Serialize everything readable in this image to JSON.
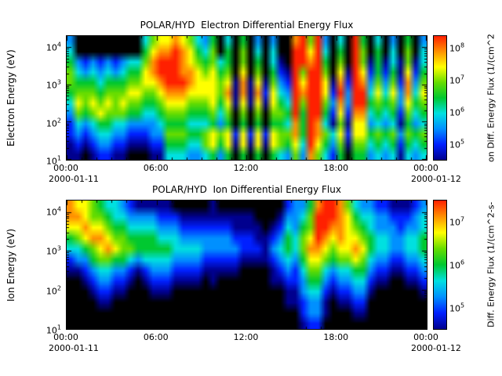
{
  "colormap": [
    "#000000",
    "#00008e",
    "#0020ff",
    "#0090ff",
    "#00e0e0",
    "#00c830",
    "#66dd00",
    "#ffff00",
    "#ff9000",
    "#ff2000"
  ],
  "chart_data": [
    {
      "type": "heatmap",
      "instrument": "POLAR/HYD",
      "title": "POLAR/HYD  Electron Differential Energy Flux",
      "ylabel": "Electron Energy (eV)",
      "y_scale": "log",
      "y_ticks": [
        "10^1",
        "10^2",
        "10^3",
        "10^4"
      ],
      "y_range_exp": [
        1,
        4.3
      ],
      "x_ticks": [
        "00:00",
        "06:00",
        "12:00",
        "18:00",
        "00:00"
      ],
      "x_date_start": "2000-01-11",
      "x_date_end": "2000-01-12",
      "colorbar_label": "on Diff. Energy Flux (1/(cm^2",
      "colorbar_ticks": [
        "10^5",
        "10^6",
        "10^7",
        "10^8"
      ],
      "colorbar_range_exp": [
        4.5,
        8.4
      ],
      "time_bin_hours": 0.5,
      "flux_levels_note": "flux_grid rows are log-spaced energy bins from 10^4.3 eV (top row) to 10^1 eV (bottom row); 48 half-hour columns 00:00-24:00; each char 0-9 is log-scaled flux: 0 = below threshold (black), 9 = maximum (red)",
      "flux_grid": [
        "300000000046778764350405030300896930409504030503",
        "400000000057889875460506040400997940509605040604",
        "532323234468999876564506050410998950609615141614",
        "643434345578999887675607060521969960719725251725",
        "655545556677899987776718171632979971829836362836",
        "566656667766788877776818182743989972939947473847",
        "476767676655677766675717171754969963839956563756",
        "365676665544566655564606060665959952728845452645",
        "243455443333455544453505050554859841617734341534",
        "232344332223366655676727272766859864727756563656",
        "121233221112255544675717171765749753616645452545",
        "110122110001144433453505050543638642505534341434"
      ]
    },
    {
      "type": "heatmap",
      "instrument": "POLAR/HYD",
      "title": "POLAR/HYD  Ion Differential Energy Flux",
      "ylabel": "Ion Energy (eV)",
      "y_scale": "log",
      "y_ticks": [
        "10^1",
        "10^2",
        "10^3",
        "10^4"
      ],
      "y_range_exp": [
        1,
        4.3
      ],
      "x_ticks": [
        "00:00",
        "06:00",
        "12:00",
        "18:00",
        "00:00"
      ],
      "x_date_start": "2000-01-11",
      "x_date_end": "2000-01-12",
      "colorbar_label": "Diff. Energy Flux (1/(cm^2-s-",
      "colorbar_ticks": [
        "10^5",
        "10^6",
        "10^7"
      ],
      "colorbar_range_exp": [
        4.5,
        7.5
      ],
      "time_bin_hours": 0.5,
      "flux_levels_note": "flux_grid rows are log-spaced energy bins from 10^4.3 eV (top row) to 10^1 eV (bottom row); 48 half-hour columns 00:00-24:00; each char 0-9 is log-scaled flux: 0 = below threshold (black), 9 = maximum (red)",
      "flux_grid": [
        "877654432111110000010000000002335899864332211123",
        "887665443333222111111111100013346999875443322234",
        "778776554444333222222211110124356998876543332334",
        "567887665555444333333322211235467987877654433445",
        "445678766555554444333332221345468876778754433445",
        "233566554344443333222221111234357765667643322334",
        "112344332123332222111110000123246643445532211223",
        "001233221012221111010000000112235532334421100112",
        "000122110001110000000000000001134421223310000001",
        "000011000000000000000000000001123310112200000000",
        "000000000000000000000000000000023310001100000000",
        "000000000000000000000000000000012200000000000000"
      ]
    }
  ]
}
